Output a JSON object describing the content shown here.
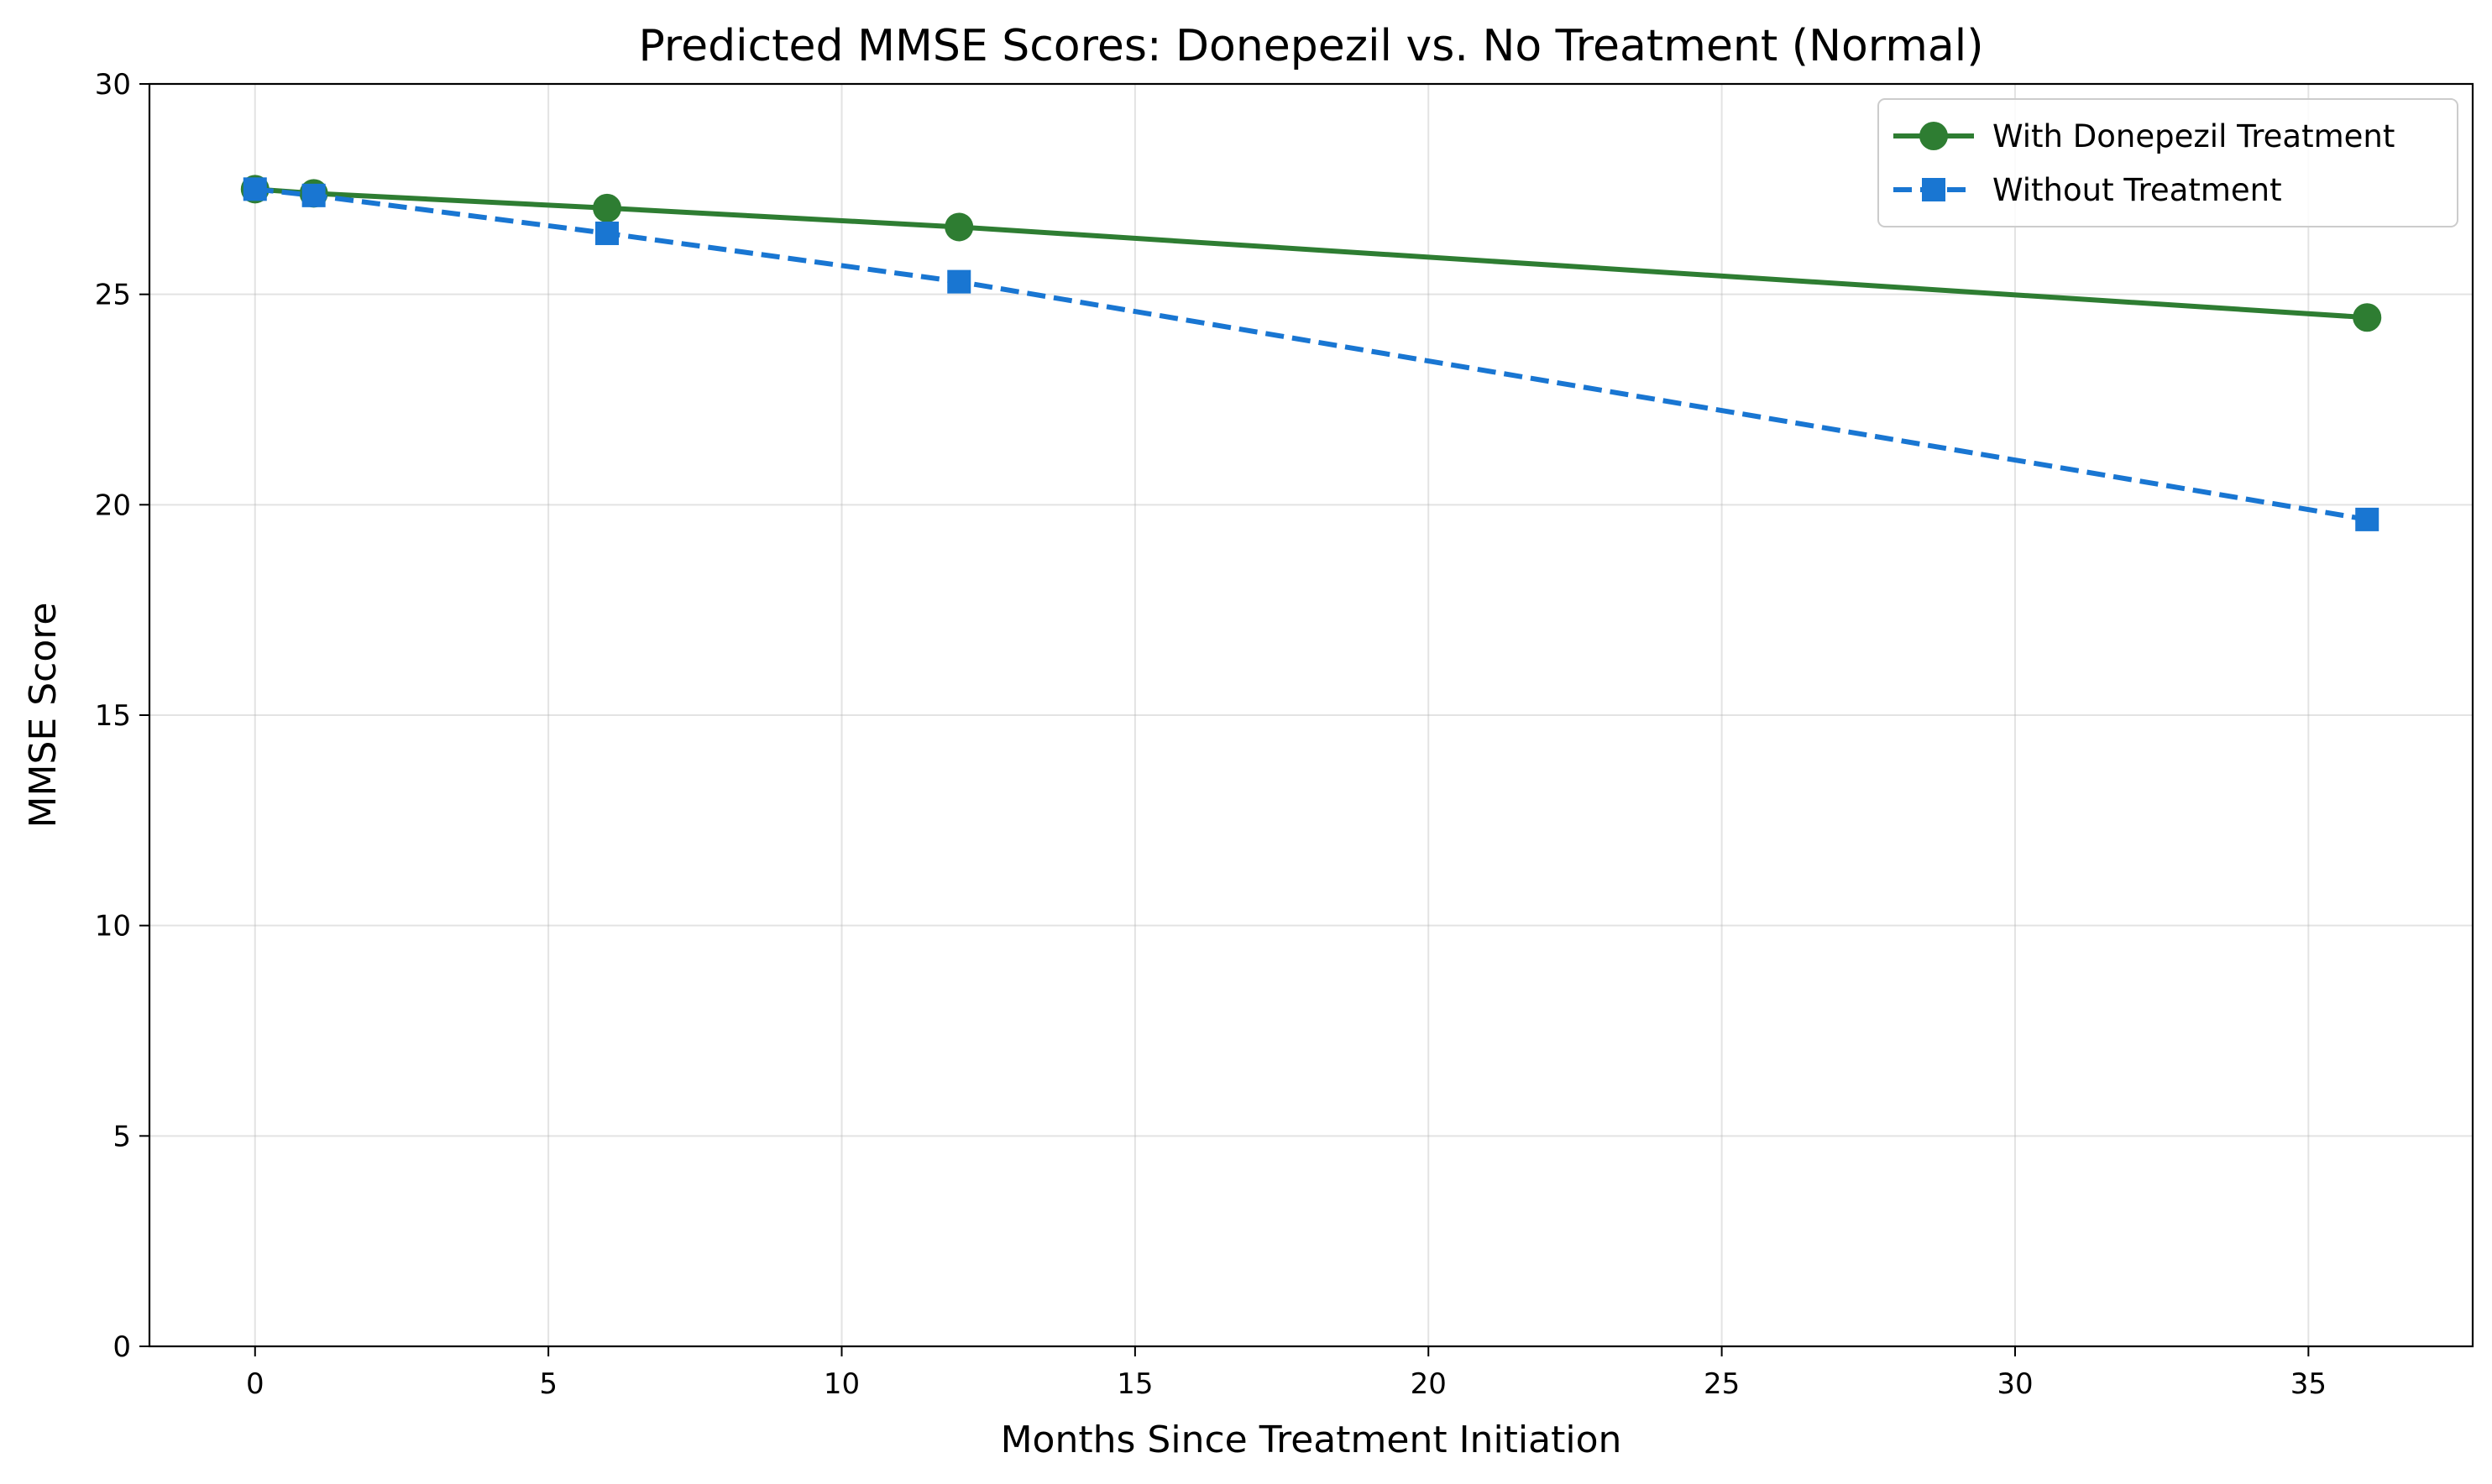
{
  "chart_data": {
    "type": "line",
    "title": "Predicted MMSE Scores: Donepezil vs. No Treatment (Normal)",
    "xlabel": "Months Since Treatment Initiation",
    "ylabel": "MMSE Score",
    "xlim": [
      -1.8,
      37.8
    ],
    "ylim": [
      0,
      30
    ],
    "xticks": [
      0,
      5,
      10,
      15,
      20,
      25,
      30,
      35
    ],
    "yticks": [
      0,
      5,
      10,
      15,
      20,
      25,
      30
    ],
    "grid": true,
    "legend_position": "top-right",
    "series": [
      {
        "name": "With Donepezil Treatment",
        "color": "#2e7d32",
        "line_style": "solid",
        "marker": "circle",
        "x": [
          0,
          1,
          6,
          12,
          36
        ],
        "y": [
          27.5,
          27.4,
          27.05,
          26.6,
          24.45
        ]
      },
      {
        "name": "Without Treatment",
        "color": "#1976d2",
        "line_style": "dashed",
        "marker": "square",
        "x": [
          0,
          1,
          6,
          12,
          36
        ],
        "y": [
          27.5,
          27.35,
          26.45,
          25.3,
          19.65
        ]
      }
    ]
  }
}
